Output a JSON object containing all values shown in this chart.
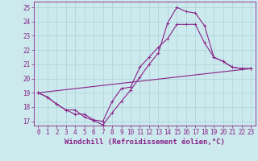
{
  "xlabel": "Windchill (Refroidissement éolien,°C)",
  "xlim": [
    -0.5,
    23.5
  ],
  "ylim": [
    16.7,
    25.4
  ],
  "xticks": [
    0,
    1,
    2,
    3,
    4,
    5,
    6,
    7,
    8,
    9,
    10,
    11,
    12,
    13,
    14,
    15,
    16,
    17,
    18,
    19,
    20,
    21,
    22,
    23
  ],
  "yticks": [
    17,
    18,
    19,
    20,
    21,
    22,
    23,
    24,
    25
  ],
  "bg_color": "#cce9ed",
  "line_color": "#882288",
  "grid_color": "#aad4d8",
  "line1_x": [
    0,
    1,
    2,
    3,
    4,
    5,
    6,
    7,
    8,
    9,
    10,
    11,
    12,
    13,
    14,
    15,
    16,
    17,
    18,
    19,
    20,
    21,
    22,
    23
  ],
  "line1_y": [
    19.0,
    18.7,
    18.2,
    17.8,
    17.8,
    17.3,
    17.05,
    16.75,
    17.6,
    18.4,
    19.2,
    20.1,
    21.0,
    21.8,
    23.9,
    25.0,
    24.7,
    24.6,
    23.7,
    21.5,
    21.2,
    20.8,
    20.7,
    20.7
  ],
  "line2_x": [
    0,
    1,
    2,
    3,
    4,
    5,
    6,
    7,
    8,
    9,
    10,
    11,
    12,
    13,
    14,
    15,
    16,
    17,
    18,
    19,
    20,
    21,
    22,
    23
  ],
  "line2_y": [
    19.0,
    18.7,
    18.2,
    17.8,
    17.5,
    17.5,
    17.1,
    17.0,
    18.4,
    19.3,
    19.4,
    20.8,
    21.5,
    22.2,
    22.8,
    23.8,
    23.8,
    23.8,
    22.5,
    21.5,
    21.2,
    20.8,
    20.7,
    20.7
  ],
  "line3_x": [
    0,
    23
  ],
  "line3_y": [
    19.0,
    20.7
  ],
  "markersize": 2.0,
  "linewidth": 0.8,
  "xlabel_fontsize": 6.5,
  "tick_fontsize": 5.5
}
